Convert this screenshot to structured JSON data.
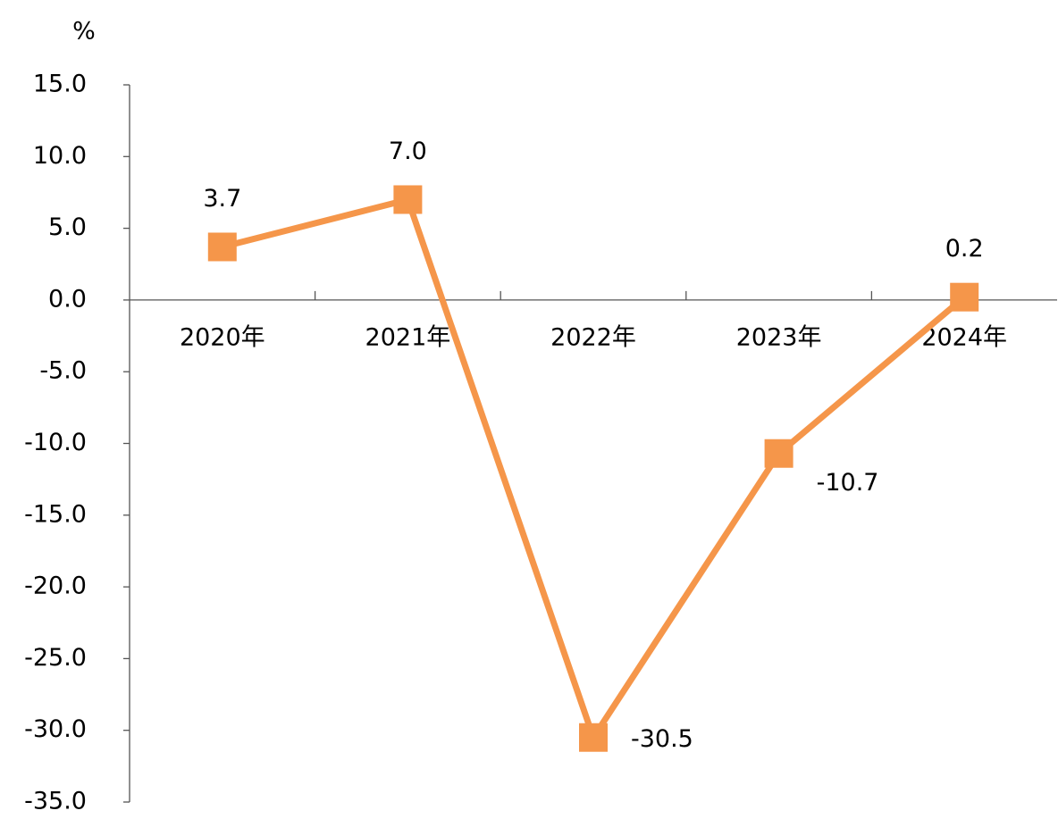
{
  "chart_data": {
    "type": "line",
    "y_label": "%",
    "categories": [
      "2020年",
      "2021年",
      "2022年",
      "2023年",
      "2024年"
    ],
    "values": [
      3.7,
      7.0,
      -30.5,
      -10.7,
      0.2
    ],
    "value_labels": [
      "3.7",
      "7.0",
      "-30.5",
      "-10.7",
      "0.2"
    ],
    "color": "#f5964a",
    "ylim": [
      -35,
      15
    ],
    "yticks": [
      {
        "value": 15,
        "label": "15.0"
      },
      {
        "value": 10,
        "label": "10.0"
      },
      {
        "value": 5,
        "label": "5.0"
      },
      {
        "value": 0,
        "label": "0.0"
      },
      {
        "value": -5,
        "label": "-5.0"
      },
      {
        "value": -10,
        "label": "-10.0"
      },
      {
        "value": -15,
        "label": "-15.0"
      },
      {
        "value": -20,
        "label": "-20.0"
      },
      {
        "value": -25,
        "label": "-25.0"
      },
      {
        "value": -30,
        "label": "-30.0"
      },
      {
        "value": -35,
        "label": "-35.0"
      }
    ],
    "grid": false
  }
}
